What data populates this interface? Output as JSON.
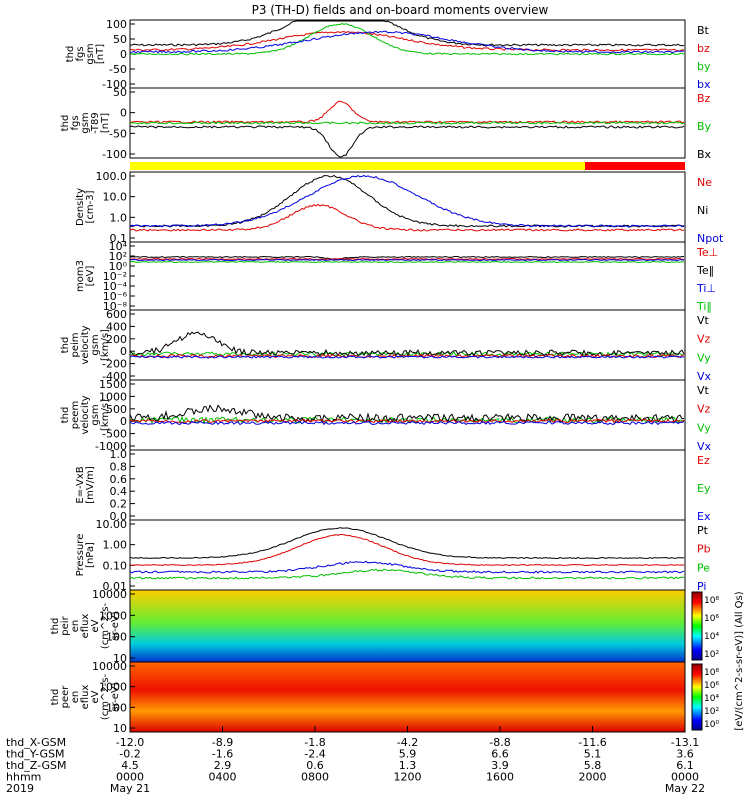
{
  "title": "P3 (TH-D) fields and on-board moments overview",
  "colors": {
    "black": "#000000",
    "red": "#e00000",
    "green": "#00c000",
    "blue": "#0000e0",
    "yellow": "#ffff00",
    "barRed": "#ff0000"
  },
  "chart_data": {
    "type": "line",
    "x_axis": {
      "time_ticks": [
        "0000",
        "0400",
        "0800",
        "1200",
        "1600",
        "2000",
        "0000"
      ],
      "rows": [
        {
          "label": "thd_X-GSM",
          "values": [
            "-12.0",
            "-8.9",
            "-1.8",
            "-4.2",
            "-8.8",
            "-11.6",
            "-13.1"
          ]
        },
        {
          "label": "thd_Y-GSM",
          "values": [
            "-0.2",
            "-1.6",
            "-2.4",
            "5.9",
            "6.6",
            "5.1",
            "3.6"
          ]
        },
        {
          "label": "thd_Z-GSM",
          "values": [
            "4.5",
            "2.9",
            "0.6",
            "1.3",
            "3.9",
            "5.8",
            "6.1"
          ]
        },
        {
          "label": "hhmm",
          "values": [
            "0000",
            "0400",
            "0800",
            "1200",
            "1600",
            "2000",
            "0000"
          ]
        },
        {
          "label": "2019",
          "values": [
            "May 21",
            "",
            "",
            "",
            "",
            "",
            "May 22"
          ]
        }
      ]
    },
    "panels": [
      {
        "id": "fgs",
        "ylabel": [
          "thd",
          "fgs",
          "gsm",
          "[nT]"
        ],
        "yticks": [
          "100",
          "50",
          "0",
          "-50",
          "-100"
        ],
        "legend": [
          {
            "t": "Bt",
            "c": "black"
          },
          {
            "t": "bz",
            "c": "red"
          },
          {
            "t": "by",
            "c": "green"
          },
          {
            "t": "bx",
            "c": "blue"
          }
        ]
      },
      {
        "id": "fgs_dc",
        "ylabel": [
          "thd",
          "fgs",
          "gsm",
          "-T89",
          "[nT]"
        ],
        "yticks": [
          "50",
          "0",
          "-50",
          "-100"
        ],
        "legend": [
          {
            "t": "Bz",
            "c": "red"
          },
          {
            "t": "By",
            "c": "green"
          },
          {
            "t": "Bx",
            "c": "black"
          }
        ]
      },
      {
        "id": "density",
        "ylabel": [
          "Density",
          "[cm-3]"
        ],
        "yticks": [
          "100.0",
          "10.0",
          "1.0",
          "0.1"
        ],
        "legend": [
          {
            "t": "Ne",
            "c": "red"
          },
          {
            "t": "Ni",
            "c": "black"
          },
          {
            "t": "Npot",
            "c": "blue"
          }
        ]
      },
      {
        "id": "temp",
        "ylabel": [
          "mom3",
          "[eV]"
        ],
        "yticks": [
          "10⁴",
          "10²",
          "10⁰",
          "10⁻²",
          "10⁻⁴",
          "10⁻⁶",
          "10⁻⁸"
        ],
        "legend": [
          {
            "t": "Te⊥",
            "c": "red"
          },
          {
            "t": "Te‖",
            "c": "black"
          },
          {
            "t": "Ti⊥",
            "c": "blue"
          },
          {
            "t": "Ti‖",
            "c": "green"
          }
        ]
      },
      {
        "id": "ion_vel",
        "ylabel": [
          "thd",
          "peim",
          "velocity",
          "gsm",
          "[km/s]"
        ],
        "yticks": [
          "600",
          "400",
          "200",
          "0",
          "-200",
          "-400"
        ],
        "legend": [
          {
            "t": "Vt",
            "c": "black"
          },
          {
            "t": "Vz",
            "c": "red"
          },
          {
            "t": "Vy",
            "c": "green"
          },
          {
            "t": "Vx",
            "c": "blue"
          }
        ]
      },
      {
        "id": "ele_vel",
        "ylabel": [
          "thd",
          "peem",
          "velocity",
          "gsm",
          "[km/s]"
        ],
        "yticks": [
          "1500",
          "1000",
          "500",
          "0",
          "-500",
          "-1000"
        ],
        "legend": [
          {
            "t": "Vt",
            "c": "black"
          },
          {
            "t": "Vz",
            "c": "red"
          },
          {
            "t": "Vy",
            "c": "green"
          },
          {
            "t": "Vx",
            "c": "blue"
          }
        ]
      },
      {
        "id": "efield",
        "ylabel": [
          "E=-VxB",
          "[mV/m]"
        ],
        "yticks": [
          "1.0",
          "0.8",
          "0.6",
          "0.4",
          "0.2",
          "0.0"
        ],
        "legend": [
          {
            "t": "Ez",
            "c": "red"
          },
          {
            "t": "Ey",
            "c": "green"
          },
          {
            "t": "Ex",
            "c": "blue"
          }
        ]
      },
      {
        "id": "pressure",
        "ylabel": [
          "Pressure",
          "[nPa]"
        ],
        "yticks": [
          "10.00",
          "1.00",
          "0.10",
          "0.01"
        ],
        "legend": [
          {
            "t": "Pt",
            "c": "black"
          },
          {
            "t": "Pb",
            "c": "red"
          },
          {
            "t": "Pe",
            "c": "green"
          },
          {
            "t": "Pi",
            "c": "blue"
          }
        ]
      },
      {
        "id": "ion_spec",
        "ylabel": [
          "thd",
          "peir",
          "en",
          "eflux",
          "eV",
          "(cm^2-s-",
          "sr-eV)"
        ],
        "yticks": [
          "10000",
          "1000",
          "100",
          "10"
        ],
        "colorbar": [
          "10⁸",
          "10⁶",
          "10⁴",
          "10²"
        ]
      },
      {
        "id": "ele_spec",
        "ylabel": [
          "thd",
          "peer",
          "en",
          "eflux",
          "eV",
          "(cm^2-s-",
          "sr-eV)"
        ],
        "yticks": [
          "10000",
          "1000",
          "100",
          "10"
        ],
        "colorbar": [
          "10⁸",
          "10⁶",
          "10⁴",
          "10²",
          "10⁰"
        ]
      }
    ],
    "colorbar_label": "[eV/(cm^2-s-sr-eV)] (All Qs)"
  }
}
